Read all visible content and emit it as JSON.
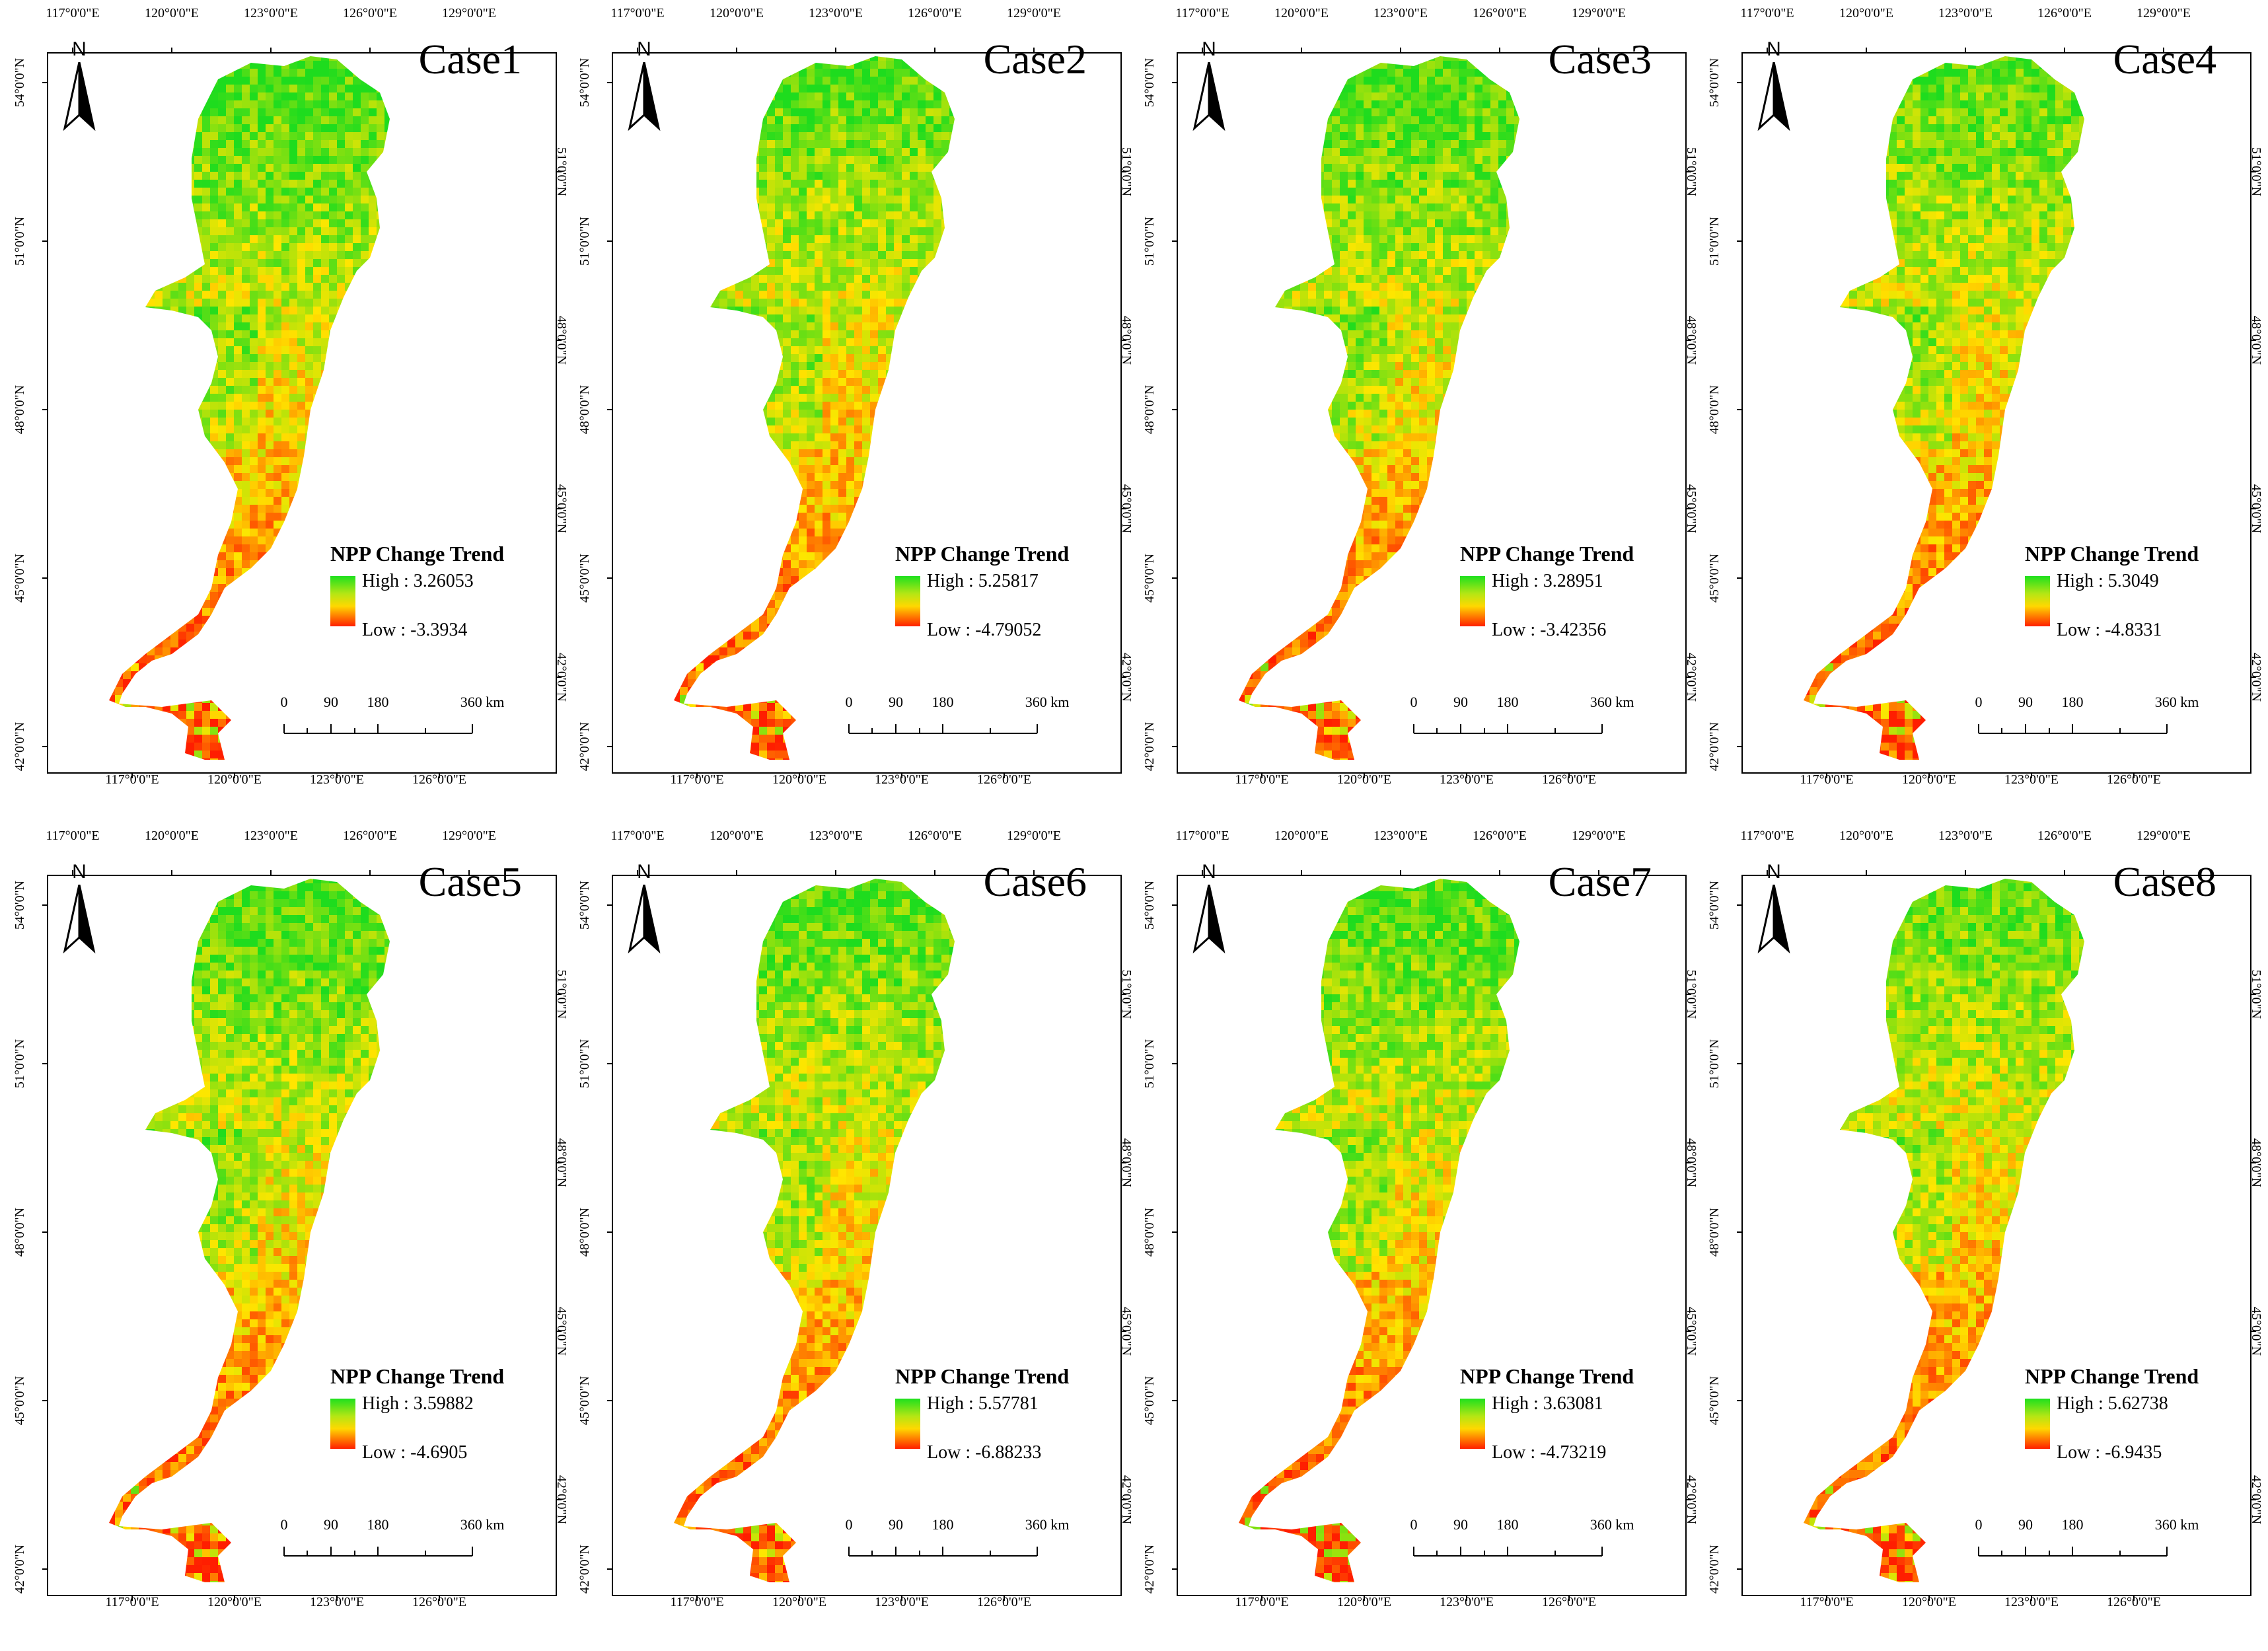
{
  "figure": {
    "north_label": "N",
    "legend_title": "NPP Change Trend",
    "high_prefix": "High : ",
    "low_prefix": "Low : ",
    "colors": {
      "high": "#1ee01e",
      "mid": "#ffd800",
      "low": "#ff2000",
      "frame": "#000000"
    },
    "lon_ticks_top": [
      "117°0'0\"E",
      "120°0'0\"E",
      "123°0'0\"E",
      "126°0'0\"E",
      "129°0'0\"E"
    ],
    "lon_ticks_bottom": [
      "117°0'0\"E",
      "120°0'0\"E",
      "123°0'0\"E",
      "126°0'0\"E"
    ],
    "lat_ticks_left": [
      "54°0'0\"N",
      "51°0'0\"N",
      "48°0'0\"N",
      "45°0'0\"N",
      "42°0'0\"N"
    ],
    "lat_ticks_right": [
      "51°0'0\"N",
      "48°0'0\"N",
      "45°0'0\"N",
      "42°0'0\"N"
    ],
    "scale_labels": [
      "0",
      "90",
      "180",
      "360 km"
    ]
  },
  "panels": [
    {
      "title": "Case1",
      "high": "3.26053",
      "low": "-3.3934",
      "greenness": 0.55
    },
    {
      "title": "Case2",
      "high": "5.25817",
      "low": "-4.79052",
      "greenness": 0.5
    },
    {
      "title": "Case3",
      "high": "3.28951",
      "low": "-3.42356",
      "greenness": 0.56
    },
    {
      "title": "Case4",
      "high": "5.3049",
      "low": "-4.8331",
      "greenness": 0.47
    },
    {
      "title": "Case5",
      "high": "3.59882",
      "low": "-4.6905",
      "greenness": 0.54
    },
    {
      "title": "Case6",
      "high": "5.57781",
      "low": "-6.88233",
      "greenness": 0.5
    },
    {
      "title": "Case7",
      "high": "3.63081",
      "low": "-4.73219",
      "greenness": 0.52
    },
    {
      "title": "Case8",
      "high": "5.62738",
      "low": "-6.9435",
      "greenness": 0.44
    }
  ]
}
